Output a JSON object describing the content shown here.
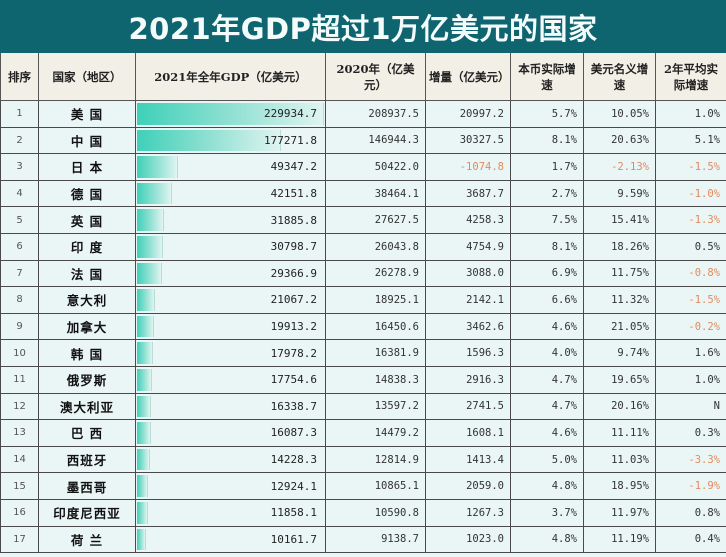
{
  "title": "2021年GDP超过1万亿美元的国家",
  "headers": [
    "排序",
    "国家（地区）",
    "2021年全年GDP（亿美元）",
    "2020年（亿美元）",
    "增量（亿美元）",
    "本币实际增速",
    "美元名义增速",
    "2年平均实际增速"
  ],
  "colors": {
    "title_bg": "#0e6570",
    "header_bg": "#f2efe6",
    "row_bg": "#eaf6f5",
    "bar": "#3fd0b8",
    "negative": "#e28a5e"
  },
  "rows": [
    {
      "rank": "1",
      "name": "美 国",
      "gdp2021": "229934.7",
      "gdp2020": "208937.5",
      "increase": "20997.2",
      "real_growth": "5.7%",
      "nominal_usd": "10.05%",
      "avg2y": "1.0%"
    },
    {
      "rank": "2",
      "name": "中 国",
      "gdp2021": "177271.8",
      "gdp2020": "146944.3",
      "increase": "30327.5",
      "real_growth": "8.1%",
      "nominal_usd": "20.63%",
      "avg2y": "5.1%"
    },
    {
      "rank": "3",
      "name": "日 本",
      "gdp2021": "49347.2",
      "gdp2020": "50422.0",
      "increase": "-1074.8",
      "real_growth": "1.7%",
      "nominal_usd": "-2.13%",
      "avg2y": "-1.5%"
    },
    {
      "rank": "4",
      "name": "德 国",
      "gdp2021": "42151.8",
      "gdp2020": "38464.1",
      "increase": "3687.7",
      "real_growth": "2.7%",
      "nominal_usd": "9.59%",
      "avg2y": "-1.0%"
    },
    {
      "rank": "5",
      "name": "英 国",
      "gdp2021": "31885.8",
      "gdp2020": "27627.5",
      "increase": "4258.3",
      "real_growth": "7.5%",
      "nominal_usd": "15.41%",
      "avg2y": "-1.3%"
    },
    {
      "rank": "6",
      "name": "印 度",
      "gdp2021": "30798.7",
      "gdp2020": "26043.8",
      "increase": "4754.9",
      "real_growth": "8.1%",
      "nominal_usd": "18.26%",
      "avg2y": "0.5%"
    },
    {
      "rank": "7",
      "name": "法 国",
      "gdp2021": "29366.9",
      "gdp2020": "26278.9",
      "increase": "3088.0",
      "real_growth": "6.9%",
      "nominal_usd": "11.75%",
      "avg2y": "-0.8%"
    },
    {
      "rank": "8",
      "name": "意大利",
      "gdp2021": "21067.2",
      "gdp2020": "18925.1",
      "increase": "2142.1",
      "real_growth": "6.6%",
      "nominal_usd": "11.32%",
      "avg2y": "-1.5%"
    },
    {
      "rank": "9",
      "name": "加拿大",
      "gdp2021": "19913.2",
      "gdp2020": "16450.6",
      "increase": "3462.6",
      "real_growth": "4.6%",
      "nominal_usd": "21.05%",
      "avg2y": "-0.2%"
    },
    {
      "rank": "10",
      "name": "韩 国",
      "gdp2021": "17978.2",
      "gdp2020": "16381.9",
      "increase": "1596.3",
      "real_growth": "4.0%",
      "nominal_usd": "9.74%",
      "avg2y": "1.6%"
    },
    {
      "rank": "11",
      "name": "俄罗斯",
      "gdp2021": "17754.6",
      "gdp2020": "14838.3",
      "increase": "2916.3",
      "real_growth": "4.7%",
      "nominal_usd": "19.65%",
      "avg2y": "1.0%"
    },
    {
      "rank": "12",
      "name": "澳大利亚",
      "gdp2021": "16338.7",
      "gdp2020": "13597.2",
      "increase": "2741.5",
      "real_growth": "4.7%",
      "nominal_usd": "20.16%",
      "avg2y": "N"
    },
    {
      "rank": "13",
      "name": "巴 西",
      "gdp2021": "16087.3",
      "gdp2020": "14479.2",
      "increase": "1608.1",
      "real_growth": "4.6%",
      "nominal_usd": "11.11%",
      "avg2y": "0.3%"
    },
    {
      "rank": "14",
      "name": "西班牙",
      "gdp2021": "14228.3",
      "gdp2020": "12814.9",
      "increase": "1413.4",
      "real_growth": "5.0%",
      "nominal_usd": "11.03%",
      "avg2y": "-3.3%"
    },
    {
      "rank": "15",
      "name": "墨西哥",
      "gdp2021": "12924.1",
      "gdp2020": "10865.1",
      "increase": "2059.0",
      "real_growth": "4.8%",
      "nominal_usd": "18.95%",
      "avg2y": "-1.9%"
    },
    {
      "rank": "16",
      "name": "印度尼西亚",
      "gdp2021": "11858.1",
      "gdp2020": "10590.8",
      "increase": "1267.3",
      "real_growth": "3.7%",
      "nominal_usd": "11.97%",
      "avg2y": "0.8%"
    },
    {
      "rank": "17",
      "name": "荷 兰",
      "gdp2021": "10161.7",
      "gdp2020": "9138.7",
      "increase": "1023.0",
      "real_growth": "4.8%",
      "nominal_usd": "11.19%",
      "avg2y": "0.4%"
    }
  ]
}
